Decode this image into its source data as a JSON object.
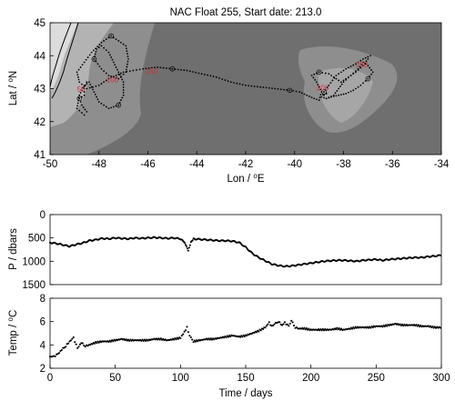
{
  "chart_data": [
    {
      "type": "line",
      "title": "NAC Float 255, Start date: 213.0",
      "xlabel": "Lon / ⁰E",
      "ylabel": "Lat / ⁰N",
      "xlim": [
        -50,
        -34
      ],
      "ylim": [
        41,
        45
      ],
      "xticks": [
        -50,
        -48,
        -46,
        -44,
        -42,
        -40,
        -38,
        -36,
        -34
      ],
      "yticks": [
        41,
        42,
        43,
        44,
        45
      ],
      "colors": {
        "deep": "#6f6f6f",
        "mid": "#8e8e8e",
        "shelf": "#b3b3b3",
        "coast": "#dcdcdc",
        "annotation": "#d0303a"
      },
      "annotations": [
        {
          "text": "50",
          "x": -48.9,
          "y": 42.9
        },
        {
          "text": "100",
          "x": -47.7,
          "y": 43.2
        },
        {
          "text": "150",
          "x": -46.1,
          "y": 43.45
        },
        {
          "text": "200",
          "x": -39.1,
          "y": 42.95
        },
        {
          "text": "250",
          "x": -37.5,
          "y": 43.65
        }
      ],
      "series": [
        {
          "x": [
            -48.5,
            -48.6,
            -48.6,
            -48.8,
            -48.7,
            -48.5,
            -48.6,
            -48.9,
            -48.8,
            -48.6,
            -48.4,
            -48.2,
            -48.0,
            -47.6,
            -47.2,
            -47.0,
            -47.0,
            -47.2,
            -47.4,
            -47.6,
            -47.9,
            -48.1,
            -48.2,
            -47.9,
            -47.6,
            -47.2,
            -46.9,
            -46.8,
            -46.9,
            -47.3,
            -47.5,
            -47.9,
            -48.3,
            -48.6,
            -48.9,
            -48.8,
            -48.5,
            -48.0,
            -47.6,
            -47.3,
            -47.0,
            -46.6,
            -46.2,
            -45.6,
            -45.0,
            -44.4,
            -43.8,
            -43.2,
            -42.6,
            -42.0,
            -41.4,
            -40.8,
            -40.2,
            -39.8,
            -39.5,
            -39.2,
            -39.0,
            -38.9,
            -39.1,
            -39.3,
            -39.0,
            -38.6,
            -38.3,
            -38.1,
            -37.8,
            -37.5,
            -37.2,
            -37.0,
            -36.9,
            -37.2,
            -37.5,
            -37.9,
            -38.3,
            -38.6,
            -38.8,
            -38.9,
            -38.7,
            -38.4,
            -38.2,
            -38.0,
            -37.7,
            -37.4,
            -37.2,
            -37.0,
            -36.8,
            -37.0,
            -37.3,
            -37.6,
            -37.9,
            -38.2,
            -38.5,
            -38.7,
            -38.8,
            -38.6
          ],
          "y": [
            43.2,
            43.0,
            42.8,
            42.7,
            42.5,
            42.3,
            42.2,
            42.4,
            42.8,
            43.1,
            43.2,
            42.9,
            42.6,
            42.4,
            42.5,
            42.8,
            43.2,
            43.5,
            43.8,
            44.1,
            44.3,
            44.2,
            43.9,
            43.6,
            43.4,
            43.3,
            43.5,
            43.9,
            44.3,
            44.5,
            44.6,
            44.4,
            44.1,
            43.8,
            43.5,
            43.2,
            43.0,
            43.1,
            43.3,
            43.4,
            43.5,
            43.55,
            43.6,
            43.65,
            43.6,
            43.55,
            43.45,
            43.35,
            43.2,
            43.1,
            43.05,
            43.0,
            42.95,
            42.9,
            42.8,
            42.7,
            42.65,
            42.9,
            43.2,
            43.4,
            43.5,
            43.45,
            43.3,
            43.2,
            43.35,
            43.5,
            43.7,
            43.9,
            44.0,
            43.9,
            43.75,
            43.6,
            43.4,
            43.1,
            42.9,
            42.75,
            42.7,
            42.8,
            43.0,
            43.2,
            43.4,
            43.6,
            43.8,
            43.7,
            43.5,
            43.3,
            43.1,
            42.95,
            42.85,
            42.8,
            42.75,
            42.7,
            42.8,
            42.9
          ]
        }
      ]
    },
    {
      "type": "scatter",
      "title": "",
      "xlabel": "",
      "ylabel": "P / dbars",
      "xlim": [
        0,
        300
      ],
      "ylim": [
        1500,
        0
      ],
      "xticks": [
        0,
        50,
        100,
        150,
        200,
        250,
        300
      ],
      "yticks": [
        0,
        500,
        1000,
        1500
      ],
      "series": [
        {
          "x": [
            0,
            5,
            10,
            15,
            20,
            25,
            30,
            35,
            40,
            45,
            50,
            55,
            60,
            65,
            70,
            75,
            80,
            85,
            90,
            95,
            100,
            102,
            104,
            106,
            108,
            110,
            115,
            120,
            125,
            130,
            135,
            140,
            145,
            150,
            155,
            160,
            165,
            170,
            175,
            180,
            185,
            190,
            195,
            200,
            205,
            210,
            215,
            220,
            225,
            230,
            235,
            240,
            245,
            250,
            255,
            260,
            265,
            270,
            275,
            280,
            285,
            290,
            295,
            300
          ],
          "y": [
            600,
            620,
            650,
            680,
            640,
            610,
            560,
            540,
            510,
            520,
            500,
            510,
            520,
            500,
            510,
            500,
            490,
            500,
            510,
            500,
            520,
            560,
            650,
            780,
            600,
            520,
            530,
            540,
            550,
            560,
            560,
            570,
            600,
            700,
            830,
            920,
            990,
            1060,
            1090,
            1110,
            1100,
            1080,
            1060,
            1040,
            1020,
            1000,
            990,
            980,
            980,
            990,
            1000,
            980,
            970,
            960,
            980,
            960,
            950,
            940,
            930,
            920,
            920,
            900,
            890,
            870
          ]
        }
      ]
    },
    {
      "type": "scatter",
      "title": "",
      "xlabel": "Time / days",
      "ylabel": "Temp / ⁰C",
      "xlim": [
        0,
        300
      ],
      "ylim": [
        2,
        8
      ],
      "xticks": [
        0,
        50,
        100,
        150,
        200,
        250,
        300
      ],
      "yticks": [
        2,
        4,
        6,
        8
      ],
      "series": [
        {
          "x": [
            0,
            3,
            6,
            9,
            12,
            15,
            18,
            21,
            24,
            27,
            30,
            35,
            40,
            45,
            50,
            55,
            60,
            65,
            70,
            75,
            80,
            85,
            90,
            95,
            100,
            103,
            105,
            107,
            110,
            115,
            120,
            125,
            130,
            135,
            140,
            145,
            150,
            155,
            160,
            165,
            168,
            170,
            172,
            175,
            178,
            180,
            183,
            185,
            188,
            190,
            195,
            200,
            205,
            210,
            215,
            220,
            225,
            230,
            235,
            240,
            245,
            250,
            255,
            260,
            265,
            270,
            275,
            280,
            285,
            290,
            295,
            300
          ],
          "y": [
            3.0,
            3.0,
            3.2,
            3.6,
            3.9,
            4.3,
            4.6,
            3.7,
            4.2,
            3.9,
            4.0,
            4.2,
            4.3,
            4.3,
            4.4,
            4.5,
            4.4,
            4.4,
            4.4,
            4.4,
            4.5,
            4.5,
            4.4,
            4.5,
            4.6,
            5.1,
            5.5,
            4.8,
            4.3,
            4.4,
            4.5,
            4.5,
            4.6,
            4.7,
            4.8,
            4.7,
            4.8,
            5.0,
            5.2,
            5.5,
            5.9,
            5.6,
            5.8,
            6.0,
            5.7,
            5.9,
            5.6,
            6.1,
            5.5,
            5.4,
            5.4,
            5.3,
            5.3,
            5.3,
            5.3,
            5.4,
            5.3,
            5.4,
            5.5,
            5.5,
            5.5,
            5.6,
            5.6,
            5.7,
            5.8,
            5.7,
            5.7,
            5.7,
            5.6,
            5.6,
            5.5,
            5.5
          ]
        }
      ]
    }
  ]
}
